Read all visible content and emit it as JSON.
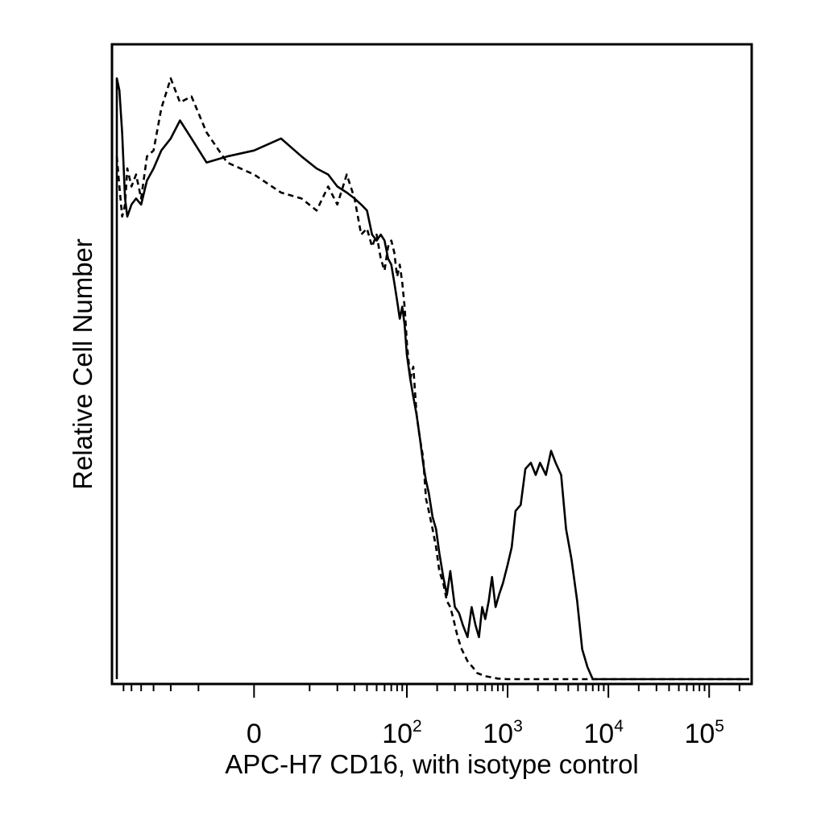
{
  "chart_data": {
    "type": "line",
    "title": "",
    "xlabel": "APC-H7 CD16, with isotype control",
    "ylabel": "Relative Cell Number",
    "x_scale": "biexponential",
    "xlim": [
      -70,
      250000
    ],
    "ylim": [
      0,
      1.05
    ],
    "grid": false,
    "legend": "none",
    "y_tick_labels": false,
    "x_tick_labels": [
      {
        "value": 0,
        "base": "0",
        "exp": ""
      },
      {
        "value": 100,
        "base": "10",
        "exp": "2"
      },
      {
        "value": 1000,
        "base": "10",
        "exp": "3"
      },
      {
        "value": 10000,
        "base": "10",
        "exp": "4"
      },
      {
        "value": 100000,
        "base": "10",
        "exp": "5"
      }
    ],
    "series": [
      {
        "style": "solid",
        "color": "#000000",
        "x": [
          -70,
          -66,
          -62,
          -58,
          -55,
          -50,
          -45,
          -40,
          -35,
          -30,
          -25,
          -20,
          -16,
          -12,
          -8,
          -4,
          0,
          4,
          8,
          12,
          16,
          20,
          25,
          30,
          35,
          40,
          45,
          50,
          55,
          60,
          65,
          70,
          75,
          80,
          85,
          90,
          95,
          100,
          108,
          116,
          125,
          135,
          145,
          155,
          165,
          180,
          195,
          210,
          230,
          250,
          270,
          300,
          330,
          360,
          400,
          440,
          480,
          520,
          560,
          600,
          650,
          700,
          760,
          820,
          900,
          1000,
          1100,
          1200,
          1350,
          1500,
          1700,
          1900,
          2100,
          2400,
          2700,
          3000,
          3400,
          3800,
          4300,
          4900,
          5500,
          6200,
          7000,
          7700,
          8200,
          9000,
          12000,
          20000,
          50000,
          100000,
          250000
        ],
        "y": [
          1.0,
          0.98,
          0.91,
          0.8,
          0.77,
          0.79,
          0.8,
          0.79,
          0.83,
          0.85,
          0.88,
          0.9,
          0.93,
          0.9,
          0.86,
          0.87,
          0.88,
          0.9,
          0.87,
          0.85,
          0.84,
          0.82,
          0.81,
          0.8,
          0.79,
          0.78,
          0.74,
          0.73,
          0.74,
          0.73,
          0.7,
          0.69,
          0.66,
          0.63,
          0.6,
          0.62,
          0.59,
          0.54,
          0.5,
          0.47,
          0.44,
          0.4,
          0.36,
          0.33,
          0.31,
          0.27,
          0.25,
          0.21,
          0.17,
          0.14,
          0.18,
          0.12,
          0.11,
          0.09,
          0.07,
          0.12,
          0.09,
          0.07,
          0.12,
          0.1,
          0.13,
          0.17,
          0.12,
          0.14,
          0.16,
          0.19,
          0.22,
          0.28,
          0.29,
          0.35,
          0.36,
          0.34,
          0.36,
          0.34,
          0.38,
          0.36,
          0.34,
          0.25,
          0.2,
          0.13,
          0.05,
          0.02,
          0.0,
          0.0,
          0.0,
          0.0,
          0.0,
          0.0,
          0.0,
          0.0,
          0.0
        ]
      },
      {
        "style": "dashed",
        "color": "#000000",
        "x": [
          -70,
          -66,
          -62,
          -58,
          -55,
          -50,
          -45,
          -40,
          -35,
          -30,
          -25,
          -20,
          -16,
          -12,
          -8,
          -4,
          0,
          4,
          8,
          12,
          16,
          20,
          25,
          30,
          35,
          40,
          45,
          50,
          55,
          60,
          65,
          70,
          75,
          80,
          85,
          90,
          95,
          100,
          108,
          116,
          125,
          135,
          145,
          155,
          165,
          180,
          195,
          210,
          230,
          250,
          270,
          290,
          320,
          350,
          400,
          450,
          500,
          600,
          700,
          800,
          1000,
          2000,
          5000,
          7000,
          10000,
          100000,
          250000
        ],
        "y": [
          0.87,
          0.82,
          0.77,
          0.79,
          0.85,
          0.82,
          0.84,
          0.8,
          0.87,
          0.88,
          0.95,
          1.0,
          0.96,
          0.97,
          0.91,
          0.86,
          0.84,
          0.81,
          0.8,
          0.78,
          0.82,
          0.79,
          0.84,
          0.8,
          0.74,
          0.75,
          0.72,
          0.74,
          0.7,
          0.68,
          0.72,
          0.73,
          0.71,
          0.67,
          0.69,
          0.66,
          0.62,
          0.56,
          0.5,
          0.52,
          0.44,
          0.4,
          0.37,
          0.3,
          0.28,
          0.25,
          0.22,
          0.18,
          0.16,
          0.13,
          0.12,
          0.1,
          0.07,
          0.05,
          0.03,
          0.02,
          0.01,
          0.005,
          0.003,
          0.001,
          0.0,
          0.0,
          0.0,
          0.0,
          0.0,
          0.0,
          0.0
        ]
      }
    ]
  }
}
